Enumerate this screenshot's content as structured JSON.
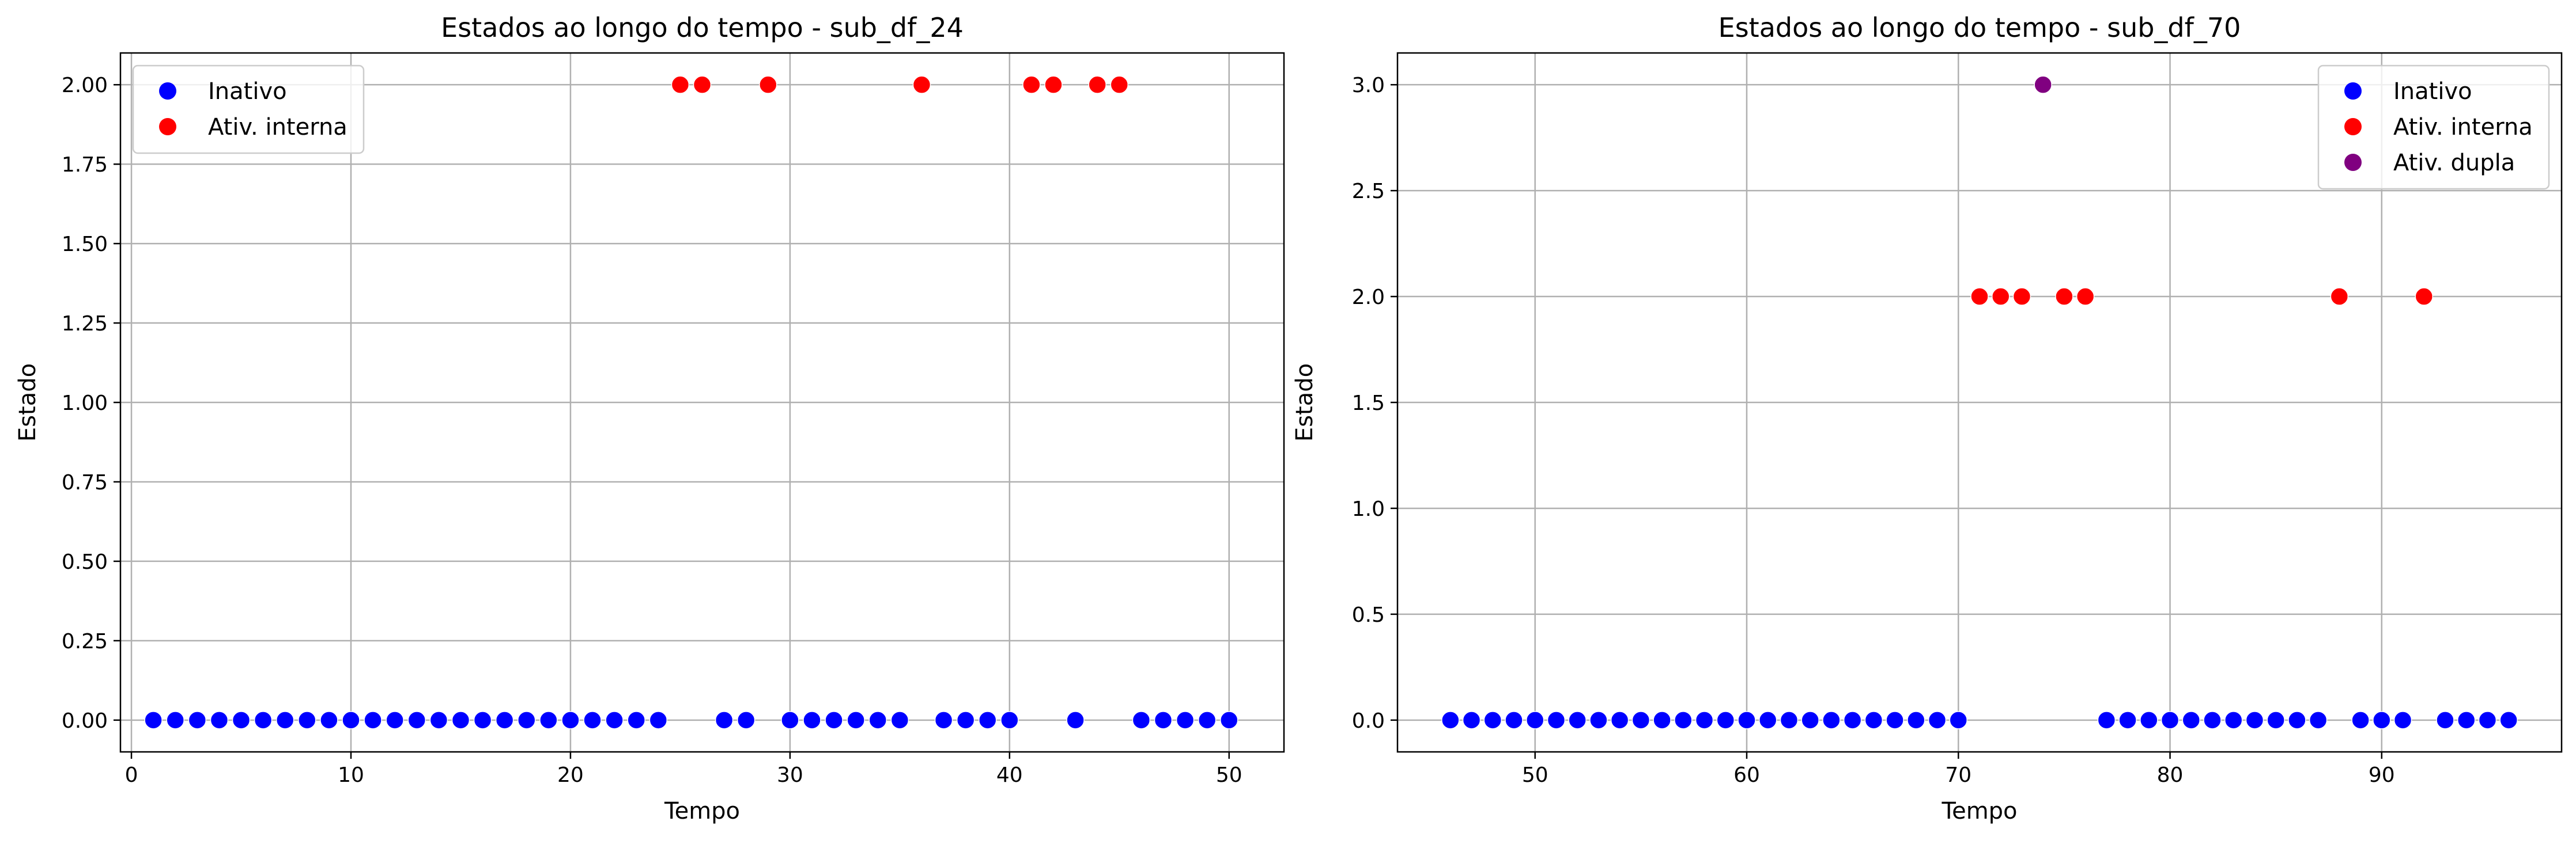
{
  "chart_data": [
    {
      "type": "scatter",
      "title": "Estados ao longo do tempo - sub_df_24",
      "xlabel": "Tempo",
      "ylabel": "Estado",
      "xlim": [
        -0.5,
        52.5
      ],
      "ylim": [
        -0.1,
        2.1
      ],
      "xticks": [
        0,
        10,
        20,
        30,
        40,
        50
      ],
      "xtick_labels": [
        "0",
        "10",
        "20",
        "30",
        "40",
        "50"
      ],
      "yticks": [
        0,
        0.25,
        0.5,
        0.75,
        1.0,
        1.25,
        1.5,
        1.75,
        2.0
      ],
      "ytick_labels": [
        "0.00",
        "0.25",
        "0.50",
        "0.75",
        "1.00",
        "1.25",
        "1.50",
        "1.75",
        "2.00"
      ],
      "grid": true,
      "legend_position": "top-left",
      "series": [
        {
          "name": "Inativo",
          "color": "#0000ff",
          "x": [
            1,
            2,
            3,
            4,
            5,
            6,
            7,
            8,
            9,
            10,
            11,
            12,
            13,
            14,
            15,
            16,
            17,
            18,
            19,
            20,
            21,
            22,
            23,
            24,
            27,
            28,
            30,
            31,
            32,
            33,
            34,
            35,
            37,
            38,
            39,
            40,
            43,
            46,
            47,
            48,
            49,
            50
          ],
          "y": [
            0,
            0,
            0,
            0,
            0,
            0,
            0,
            0,
            0,
            0,
            0,
            0,
            0,
            0,
            0,
            0,
            0,
            0,
            0,
            0,
            0,
            0,
            0,
            0,
            0,
            0,
            0,
            0,
            0,
            0,
            0,
            0,
            0,
            0,
            0,
            0,
            0,
            0,
            0,
            0,
            0,
            0
          ]
        },
        {
          "name": "Ativ. interna",
          "color": "#ff0000",
          "x": [
            25,
            26,
            29,
            36,
            41,
            42,
            44,
            45
          ],
          "y": [
            2,
            2,
            2,
            2,
            2,
            2,
            2,
            2
          ]
        }
      ]
    },
    {
      "type": "scatter",
      "title": "Estados ao longo do tempo - sub_df_70",
      "xlabel": "Tempo",
      "ylabel": "Estado",
      "xlim": [
        43.5,
        98.5
      ],
      "ylim": [
        -0.15,
        3.15
      ],
      "xticks": [
        50,
        60,
        70,
        80,
        90
      ],
      "xtick_labels": [
        "50",
        "60",
        "70",
        "80",
        "90"
      ],
      "yticks": [
        0,
        0.5,
        1.0,
        1.5,
        2.0,
        2.5,
        3.0
      ],
      "ytick_labels": [
        "0.0",
        "0.5",
        "1.0",
        "1.5",
        "2.0",
        "2.5",
        "3.0"
      ],
      "grid": true,
      "legend_position": "top-right",
      "series": [
        {
          "name": "Inativo",
          "color": "#0000ff",
          "x": [
            46,
            47,
            48,
            49,
            50,
            51,
            52,
            53,
            54,
            55,
            56,
            57,
            58,
            59,
            60,
            61,
            62,
            63,
            64,
            65,
            66,
            67,
            68,
            69,
            70,
            77,
            78,
            79,
            80,
            81,
            82,
            83,
            84,
            85,
            86,
            87,
            89,
            90,
            91,
            93,
            94,
            95,
            96
          ],
          "y": [
            0,
            0,
            0,
            0,
            0,
            0,
            0,
            0,
            0,
            0,
            0,
            0,
            0,
            0,
            0,
            0,
            0,
            0,
            0,
            0,
            0,
            0,
            0,
            0,
            0,
            0,
            0,
            0,
            0,
            0,
            0,
            0,
            0,
            0,
            0,
            0,
            0,
            0,
            0,
            0,
            0,
            0,
            0
          ]
        },
        {
          "name": "Ativ. interna",
          "color": "#ff0000",
          "x": [
            71,
            72,
            73,
            75,
            76,
            88,
            92
          ],
          "y": [
            2,
            2,
            2,
            2,
            2,
            2,
            2
          ]
        },
        {
          "name": "Ativ. dupla",
          "color": "#800080",
          "x": [
            74
          ],
          "y": [
            3
          ]
        }
      ]
    }
  ]
}
